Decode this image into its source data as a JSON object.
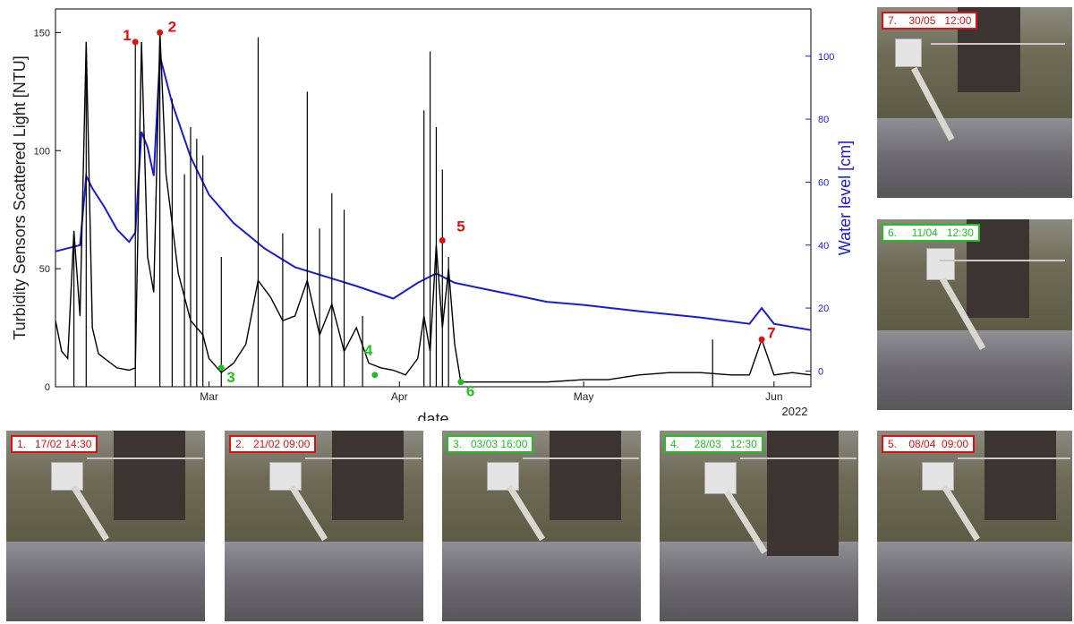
{
  "chart_data": {
    "type": "line",
    "xlabel": "date",
    "ylabel_left": "Turbidity Sensors Scattered Light [NTU]",
    "ylabel_right": "Water level [cm]",
    "year_label": "2022",
    "x_ticks": [
      {
        "date": "2022-03-01",
        "label": "Mar"
      },
      {
        "date": "2022-04-01",
        "label": "Apr"
      },
      {
        "date": "2022-05-01",
        "label": "May"
      },
      {
        "date": "2022-06-01",
        "label": "Jun"
      }
    ],
    "xlim": [
      "2022-02-04",
      "2022-06-07"
    ],
    "ylim_left": [
      0,
      160
    ],
    "ylim_right": [
      -5,
      115
    ],
    "y_ticks_left": [
      0,
      50,
      100,
      150
    ],
    "y_ticks_right": [
      0,
      20,
      40,
      60,
      80,
      100
    ],
    "colors": {
      "turbidity": "#000000",
      "water_level": "#1a1adf",
      "events_red": "#e01010",
      "events_green": "#20c020"
    },
    "series": [
      {
        "axis": "right",
        "color": "#1a1adf",
        "x": [
          "2022-02-04",
          "2022-02-06",
          "2022-02-08",
          "2022-02-09",
          "2022-02-10",
          "2022-02-12",
          "2022-02-14",
          "2022-02-16",
          "2022-02-17",
          "2022-02-18",
          "2022-02-19",
          "2022-02-20",
          "2022-02-21",
          "2022-02-23",
          "2022-02-26",
          "2022-03-01",
          "2022-03-05",
          "2022-03-10",
          "2022-03-15",
          "2022-03-20",
          "2022-03-25",
          "2022-03-31",
          "2022-04-04",
          "2022-04-07",
          "2022-04-10",
          "2022-04-15",
          "2022-04-20",
          "2022-04-25",
          "2022-05-01",
          "2022-05-10",
          "2022-05-20",
          "2022-05-28",
          "2022-05-30",
          "2022-06-01",
          "2022-06-04",
          "2022-06-07"
        ],
        "y": [
          38,
          39,
          40,
          62,
          58,
          52,
          45,
          41,
          44,
          76,
          71,
          62,
          100,
          85,
          68,
          56,
          47,
          39,
          33,
          30,
          27,
          23,
          28,
          31,
          28,
          26,
          24,
          22,
          21,
          19,
          17,
          15,
          20,
          15,
          14,
          13
        ]
      },
      {
        "axis": "left",
        "color": "#000000",
        "x": [
          "2022-02-04",
          "2022-02-05",
          "2022-02-06",
          "2022-02-07",
          "2022-02-08",
          "2022-02-09",
          "2022-02-10",
          "2022-02-11",
          "2022-02-12",
          "2022-02-14",
          "2022-02-16",
          "2022-02-17",
          "2022-02-18",
          "2022-02-19",
          "2022-02-20",
          "2022-02-21",
          "2022-02-22",
          "2022-02-24",
          "2022-02-26",
          "2022-02-28",
          "2022-03-01",
          "2022-03-03",
          "2022-03-05",
          "2022-03-07",
          "2022-03-09",
          "2022-03-11",
          "2022-03-13",
          "2022-03-15",
          "2022-03-17",
          "2022-03-19",
          "2022-03-21",
          "2022-03-23",
          "2022-03-25",
          "2022-03-27",
          "2022-03-29",
          "2022-03-31",
          "2022-04-02",
          "2022-04-04",
          "2022-04-05",
          "2022-04-06",
          "2022-04-07",
          "2022-04-08",
          "2022-04-09",
          "2022-04-10",
          "2022-04-11",
          "2022-04-15",
          "2022-04-20",
          "2022-04-25",
          "2022-05-01",
          "2022-05-05",
          "2022-05-10",
          "2022-05-15",
          "2022-05-20",
          "2022-05-25",
          "2022-05-28",
          "2022-05-30",
          "2022-06-01",
          "2022-06-04",
          "2022-06-07"
        ],
        "y": [
          28,
          15,
          12,
          66,
          30,
          146,
          25,
          14,
          12,
          8,
          7,
          8,
          146,
          55,
          40,
          150,
          90,
          48,
          28,
          22,
          12,
          6,
          10,
          18,
          45,
          38,
          28,
          30,
          45,
          22,
          35,
          15,
          25,
          10,
          8,
          7,
          5,
          12,
          30,
          15,
          60,
          25,
          50,
          18,
          2,
          2,
          2,
          2,
          3,
          3,
          5,
          6,
          6,
          5,
          5,
          20,
          5,
          6,
          5
        ]
      }
    ],
    "spikes_left": [
      {
        "date": "2022-02-07",
        "value": 66
      },
      {
        "date": "2022-02-09",
        "value": 146
      },
      {
        "date": "2022-02-17",
        "value": 146
      },
      {
        "date": "2022-02-21",
        "value": 150
      },
      {
        "date": "2022-02-23",
        "value": 122
      },
      {
        "date": "2022-02-25",
        "value": 90
      },
      {
        "date": "2022-02-26",
        "value": 110
      },
      {
        "date": "2022-02-27",
        "value": 105
      },
      {
        "date": "2022-02-28",
        "value": 98
      },
      {
        "date": "2022-03-03",
        "value": 55
      },
      {
        "date": "2022-03-09",
        "value": 148
      },
      {
        "date": "2022-03-13",
        "value": 65
      },
      {
        "date": "2022-03-17",
        "value": 125
      },
      {
        "date": "2022-03-19",
        "value": 67
      },
      {
        "date": "2022-03-21",
        "value": 82
      },
      {
        "date": "2022-03-23",
        "value": 75
      },
      {
        "date": "2022-03-26",
        "value": 30
      },
      {
        "date": "2022-04-05",
        "value": 117
      },
      {
        "date": "2022-04-06",
        "value": 142
      },
      {
        "date": "2022-04-07",
        "value": 110
      },
      {
        "date": "2022-04-08",
        "value": 92
      },
      {
        "date": "2022-04-09",
        "value": 55
      },
      {
        "date": "2022-05-22",
        "value": 20
      }
    ],
    "events": [
      {
        "label": "1",
        "date": "2022-02-17",
        "value": 146,
        "color": "red"
      },
      {
        "label": "2",
        "date": "2022-02-21",
        "value": 150,
        "color": "red"
      },
      {
        "label": "3",
        "date": "2022-03-03",
        "value": 8,
        "color": "green"
      },
      {
        "label": "4",
        "date": "2022-03-28",
        "value": 5,
        "color": "green"
      },
      {
        "label": "5",
        "date": "2022-04-08",
        "value": 62,
        "color": "red"
      },
      {
        "label": "6",
        "date": "2022-04-11",
        "value": 2,
        "color": "green"
      },
      {
        "label": "7",
        "date": "2022-05-30",
        "value": 20,
        "color": "red"
      }
    ]
  },
  "photos": [
    {
      "caption": "1.   17/02 14:30",
      "color": "red"
    },
    {
      "caption": "2.   21/02 09:00",
      "color": "red"
    },
    {
      "caption": "3.   03/03 16:00",
      "color": "green"
    },
    {
      "caption": "4.     28/03   12:30",
      "color": "green"
    },
    {
      "caption": "5.    08/04  09:00",
      "color": "red"
    },
    {
      "caption": "6.     11/04   12:30",
      "color": "green"
    },
    {
      "caption": "7.    30/05   12:00",
      "color": "red"
    }
  ]
}
